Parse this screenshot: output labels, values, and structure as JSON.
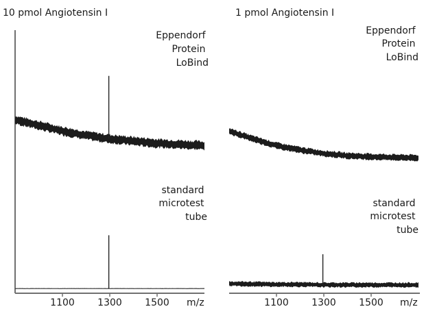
{
  "chart_data": [
    {
      "type": "line",
      "title": "10 pmol Angiotensin I",
      "xlabel": "m/z",
      "xlim": [
        900,
        1700
      ],
      "xticks": [
        1100,
        1300,
        1500
      ],
      "grid": false,
      "series": [
        {
          "name": "Eppendorf Protein LoBind",
          "label_lines": [
            "Eppendorf",
            "Protein",
            "LoBind"
          ],
          "baseline_x": [
            900,
            1000,
            1100,
            1200,
            1300,
            1400,
            1500,
            1600,
            1700
          ],
          "baseline_y": [
            0.52,
            0.47,
            0.42,
            0.38,
            0.35,
            0.33,
            0.31,
            0.3,
            0.29
          ],
          "noise": 0.07,
          "peak": {
            "x": 1296,
            "height": 0.91
          }
        },
        {
          "name": "standard microtest tube",
          "label_lines": [
            "standard",
            "microtest",
            "tube"
          ],
          "baseline_x": [
            900,
            1000,
            1100,
            1200,
            1300,
            1400,
            1500,
            1600,
            1700
          ],
          "baseline_y": [
            0.02,
            0.02,
            0.02,
            0.02,
            0.02,
            0.02,
            0.02,
            0.02,
            0.02
          ],
          "noise": 0.005,
          "peak": {
            "x": 1296,
            "height": 0.64
          }
        }
      ]
    },
    {
      "type": "line",
      "title": "1 pmol Angiotensin I",
      "xlabel": "m/z",
      "xlim": [
        900,
        1700
      ],
      "xticks": [
        1100,
        1300,
        1500
      ],
      "grid": false,
      "series": [
        {
          "name": "Eppendorf Protein LoBind",
          "label_lines": [
            "Eppendorf",
            "Protein",
            "LoBind"
          ],
          "baseline_x": [
            900,
            1000,
            1100,
            1200,
            1300,
            1400,
            1500,
            1600,
            1700
          ],
          "baseline_y": [
            0.42,
            0.35,
            0.29,
            0.25,
            0.22,
            0.2,
            0.19,
            0.185,
            0.18
          ],
          "noise": 0.05,
          "peak": null
        },
        {
          "name": "standard microtest tube",
          "label_lines": [
            "standard",
            "microtest",
            "tube"
          ],
          "baseline_x": [
            900,
            1000,
            1100,
            1200,
            1300,
            1400,
            1500,
            1600,
            1700
          ],
          "baseline_y": [
            0.08,
            0.075,
            0.07,
            0.07,
            0.065,
            0.065,
            0.065,
            0.065,
            0.065
          ],
          "noise": 0.05,
          "peak": {
            "x": 1296,
            "height": 0.42
          }
        }
      ]
    }
  ]
}
